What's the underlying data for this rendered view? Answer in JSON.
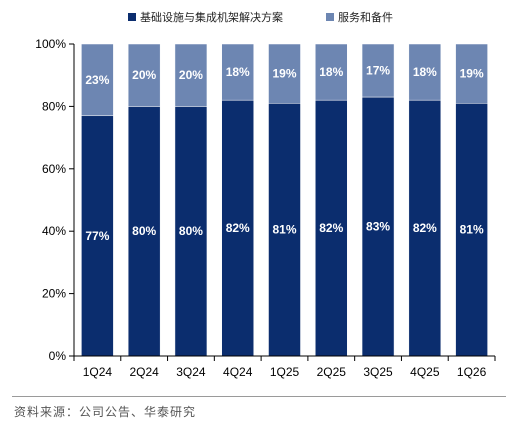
{
  "chart_data": {
    "type": "bar",
    "stacked": true,
    "categories": [
      "1Q24",
      "2Q24",
      "3Q24",
      "4Q24",
      "1Q25",
      "2Q25",
      "3Q25",
      "4Q25",
      "1Q26"
    ],
    "series": [
      {
        "name": "基础设施与集成机架解决方案",
        "values": [
          77,
          80,
          80,
          82,
          81,
          82,
          83,
          82,
          81
        ],
        "labels": [
          "77%",
          "80%",
          "80%",
          "82%",
          "81%",
          "82%",
          "83%",
          "82%",
          "81%"
        ],
        "color": "#0b2d6e"
      },
      {
        "name": "服务和备件",
        "values": [
          23,
          20,
          20,
          18,
          19,
          18,
          17,
          18,
          19
        ],
        "labels": [
          "23%",
          "20%",
          "20%",
          "18%",
          "19%",
          "18%",
          "17%",
          "18%",
          "19%"
        ],
        "color": "#6d86b2"
      }
    ],
    "ylim": [
      0,
      100
    ],
    "yticks": [
      "0%",
      "20%",
      "40%",
      "60%",
      "80%",
      "100%"
    ],
    "legend": "top",
    "grid": false
  },
  "source": "资料来源：公司公告、华泰研究"
}
